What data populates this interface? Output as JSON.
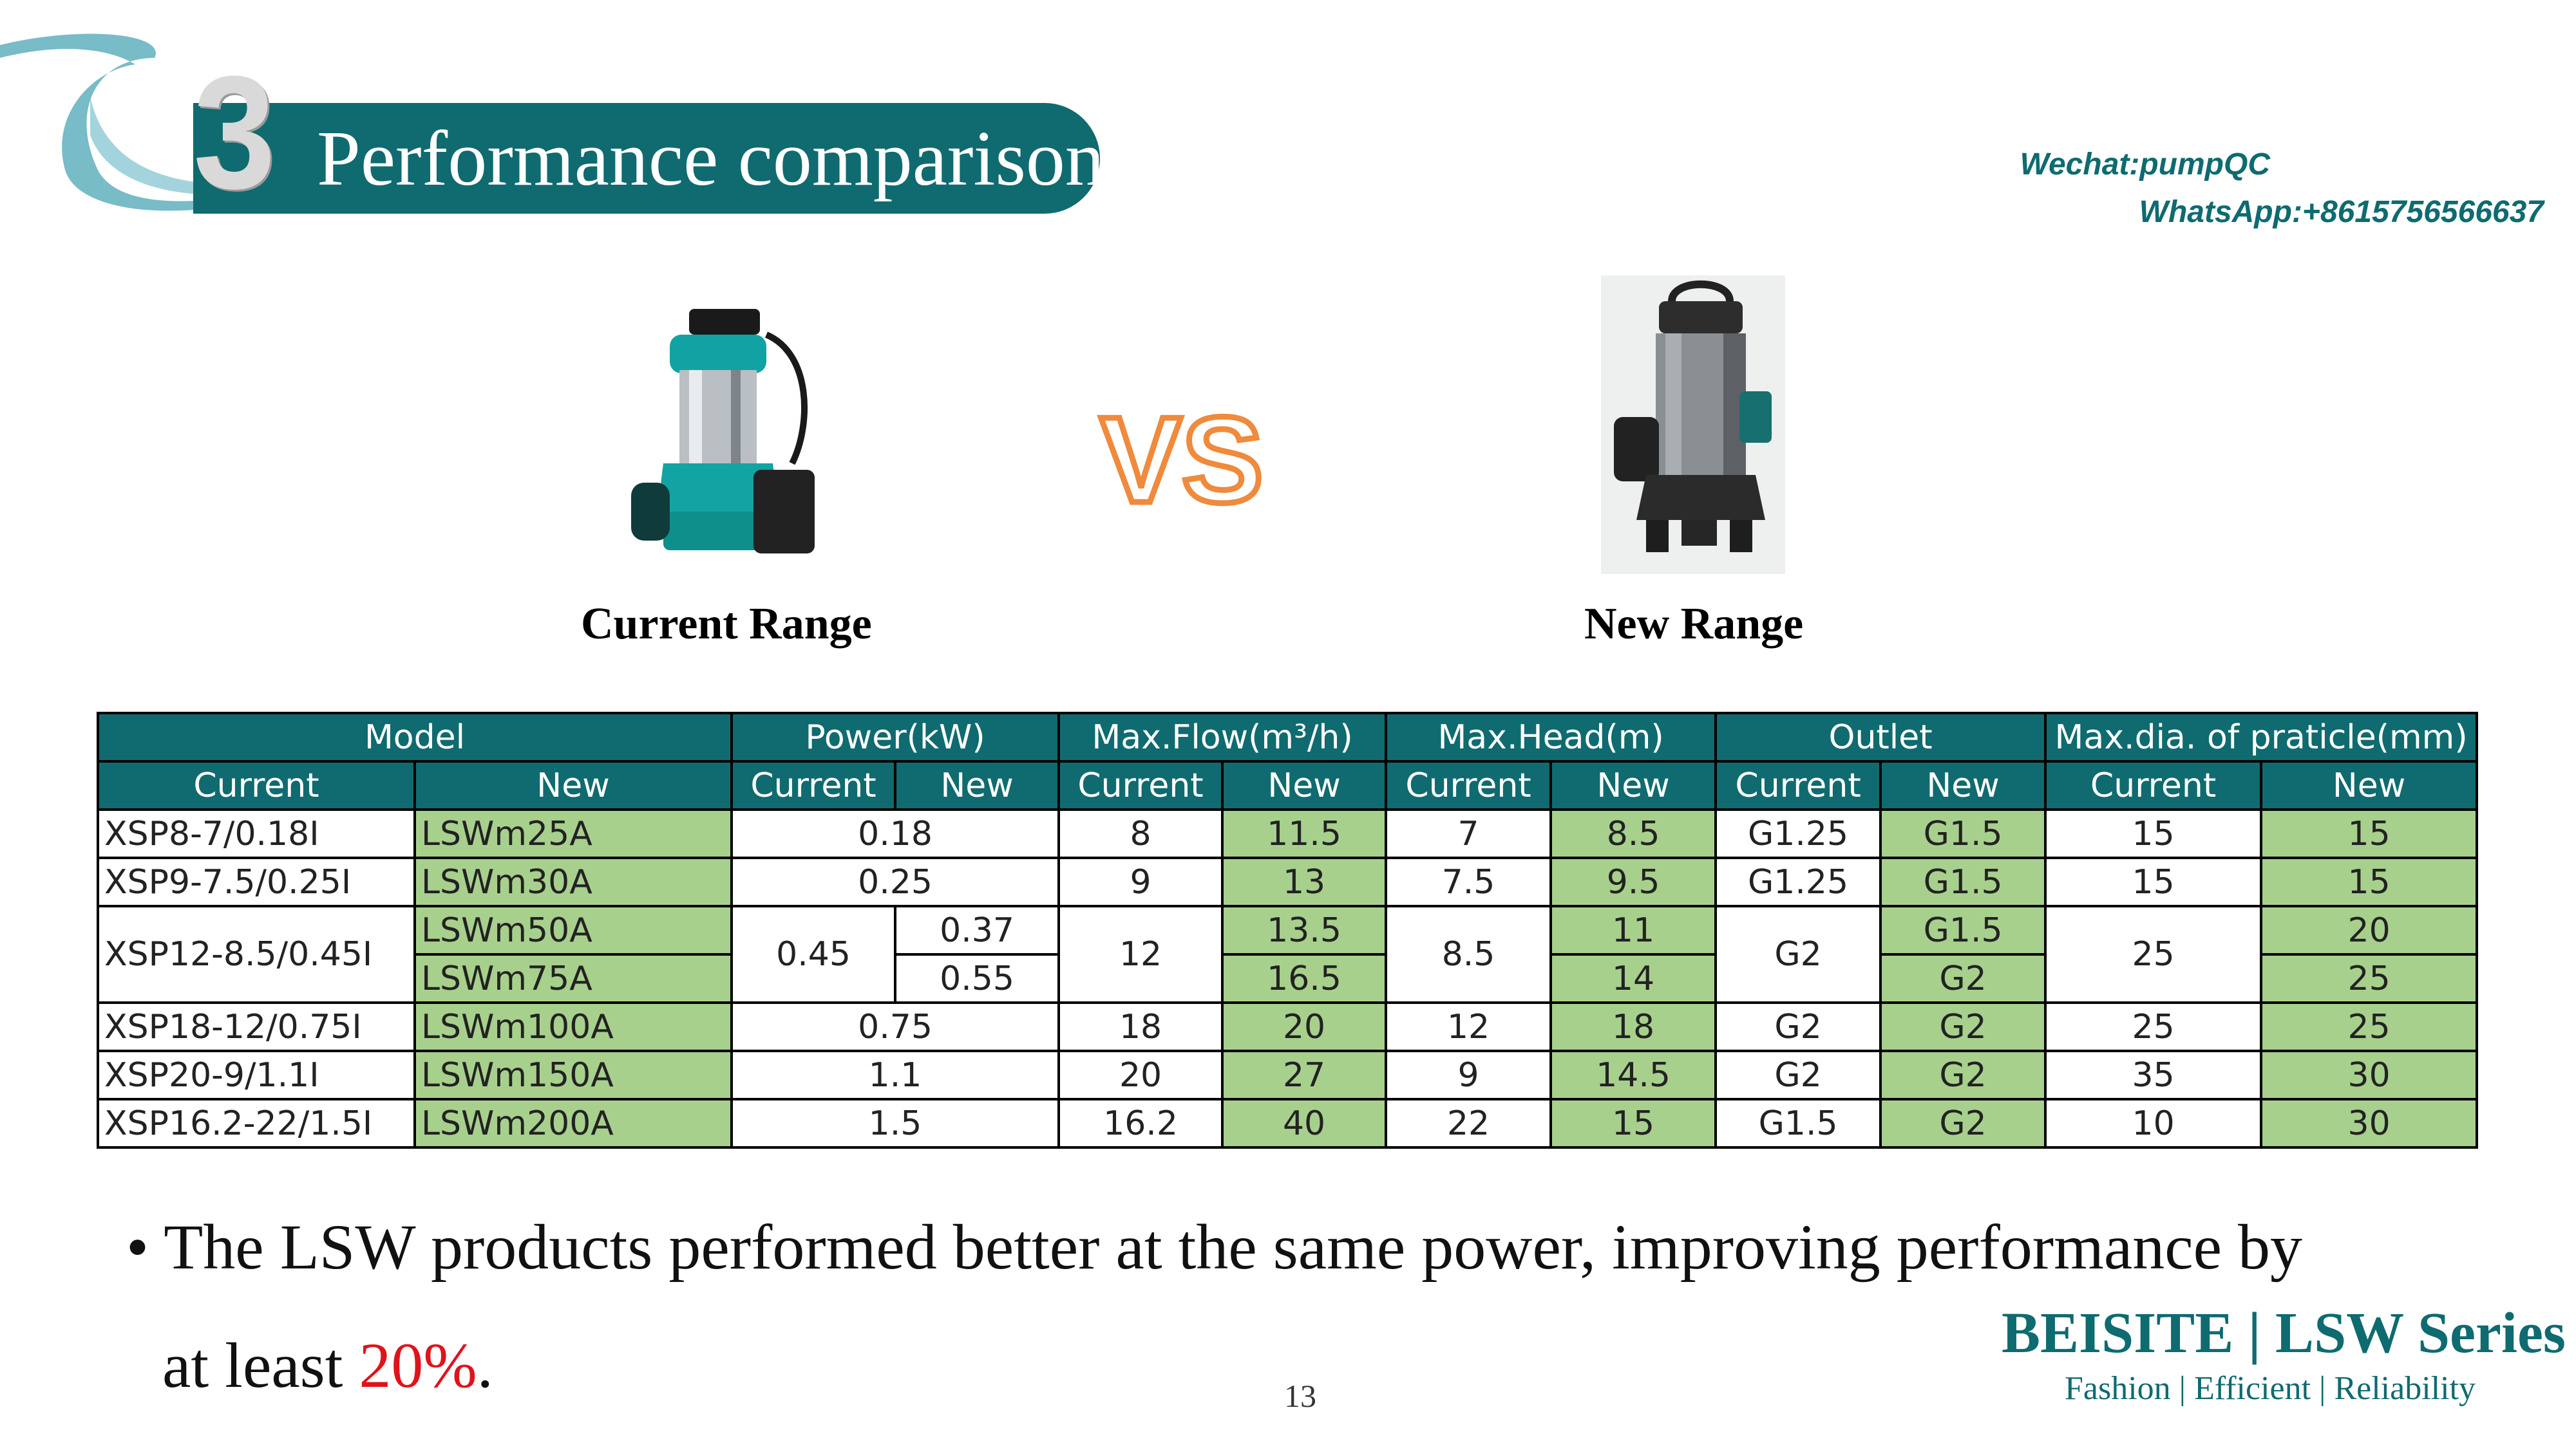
{
  "header": {
    "number": "3",
    "title": "Performance comparison",
    "contact_wechat": "Wechat:pumpQC",
    "contact_whatsapp": "WhatsApp:+8615756566637"
  },
  "products": {
    "vs_text": "VS",
    "current_label": "Current Range",
    "new_label": "New Range"
  },
  "table": {
    "group_headers": [
      "Model",
      "Power(kW)",
      "Max.Flow(m³/h)",
      "Max.Head(m)",
      "Outlet",
      "Max.dia. of praticle(mm)"
    ],
    "sub_headers": [
      "Current",
      "New",
      "Current",
      "New",
      "Current",
      "New",
      "Current",
      "New",
      "Current",
      "New",
      "Current",
      "New"
    ],
    "rows": [
      {
        "current": "XSP8-7/0.18I",
        "new": "LSWm25A",
        "power": "0.18",
        "flow_cur": "8",
        "flow_new": "11.5",
        "head_cur": "7",
        "head_new": "8.5",
        "outlet_cur": "G1.25",
        "outlet_new": "G1.5",
        "dia_cur": "15",
        "dia_new": "15"
      },
      {
        "current": "XSP9-7.5/0.25I",
        "new": "LSWm30A",
        "power": "0.25",
        "flow_cur": "9",
        "flow_new": "13",
        "head_cur": "7.5",
        "head_new": "9.5",
        "outlet_cur": "G1.25",
        "outlet_new": "G1.5",
        "dia_cur": "15",
        "dia_new": "15"
      },
      {
        "current": "XSP12-8.5/0.45I",
        "new_a": "LSWm50A",
        "new_b": "LSWm75A",
        "power_cur": "0.45",
        "power_new_a": "0.37",
        "power_new_b": "0.55",
        "flow_cur": "12",
        "flow_new_a": "13.5",
        "flow_new_b": "16.5",
        "head_cur": "8.5",
        "head_new_a": "11",
        "head_new_b": "14",
        "outlet_cur": "G2",
        "outlet_new_a": "G1.5",
        "outlet_new_b": "G2",
        "dia_cur": "25",
        "dia_new_a": "20",
        "dia_new_b": "25"
      },
      {
        "current": "XSP18-12/0.75I",
        "new": "LSWm100A",
        "power": "0.75",
        "flow_cur": "18",
        "flow_new": "20",
        "head_cur": "12",
        "head_new": "18",
        "outlet_cur": "G2",
        "outlet_new": "G2",
        "dia_cur": "25",
        "dia_new": "25"
      },
      {
        "current": "XSP20-9/1.1I",
        "new": "LSWm150A",
        "power": "1.1",
        "flow_cur": "20",
        "flow_new": "27",
        "head_cur": "9",
        "head_new": "14.5",
        "outlet_cur": "G2",
        "outlet_new": "G2",
        "dia_cur": "35",
        "dia_new": "30"
      },
      {
        "current": "XSP16.2-22/1.5I",
        "new": "LSWm200A",
        "power": "1.5",
        "flow_cur": "16.2",
        "flow_new": "40",
        "head_cur": "22",
        "head_new": "15",
        "outlet_cur": "G1.5",
        "outlet_new": "G2",
        "dia_cur": "10",
        "dia_new": "30"
      }
    ]
  },
  "footer": {
    "bullet": "•",
    "line1": "The LSW products performed better at the same power, improving performance by",
    "line2_prefix": "at least ",
    "line2_highlight": "20%",
    "line2_suffix": ".",
    "page_number": "13",
    "brand": "BEISITE | LSW Series",
    "tagline": "Fashion | Efficient | Reliability"
  },
  "colors": {
    "teal": "#0f6b6f",
    "green_cell": "#a8d08d",
    "highlight_red": "#e0131b",
    "vs_orange": "#f08a3c"
  }
}
